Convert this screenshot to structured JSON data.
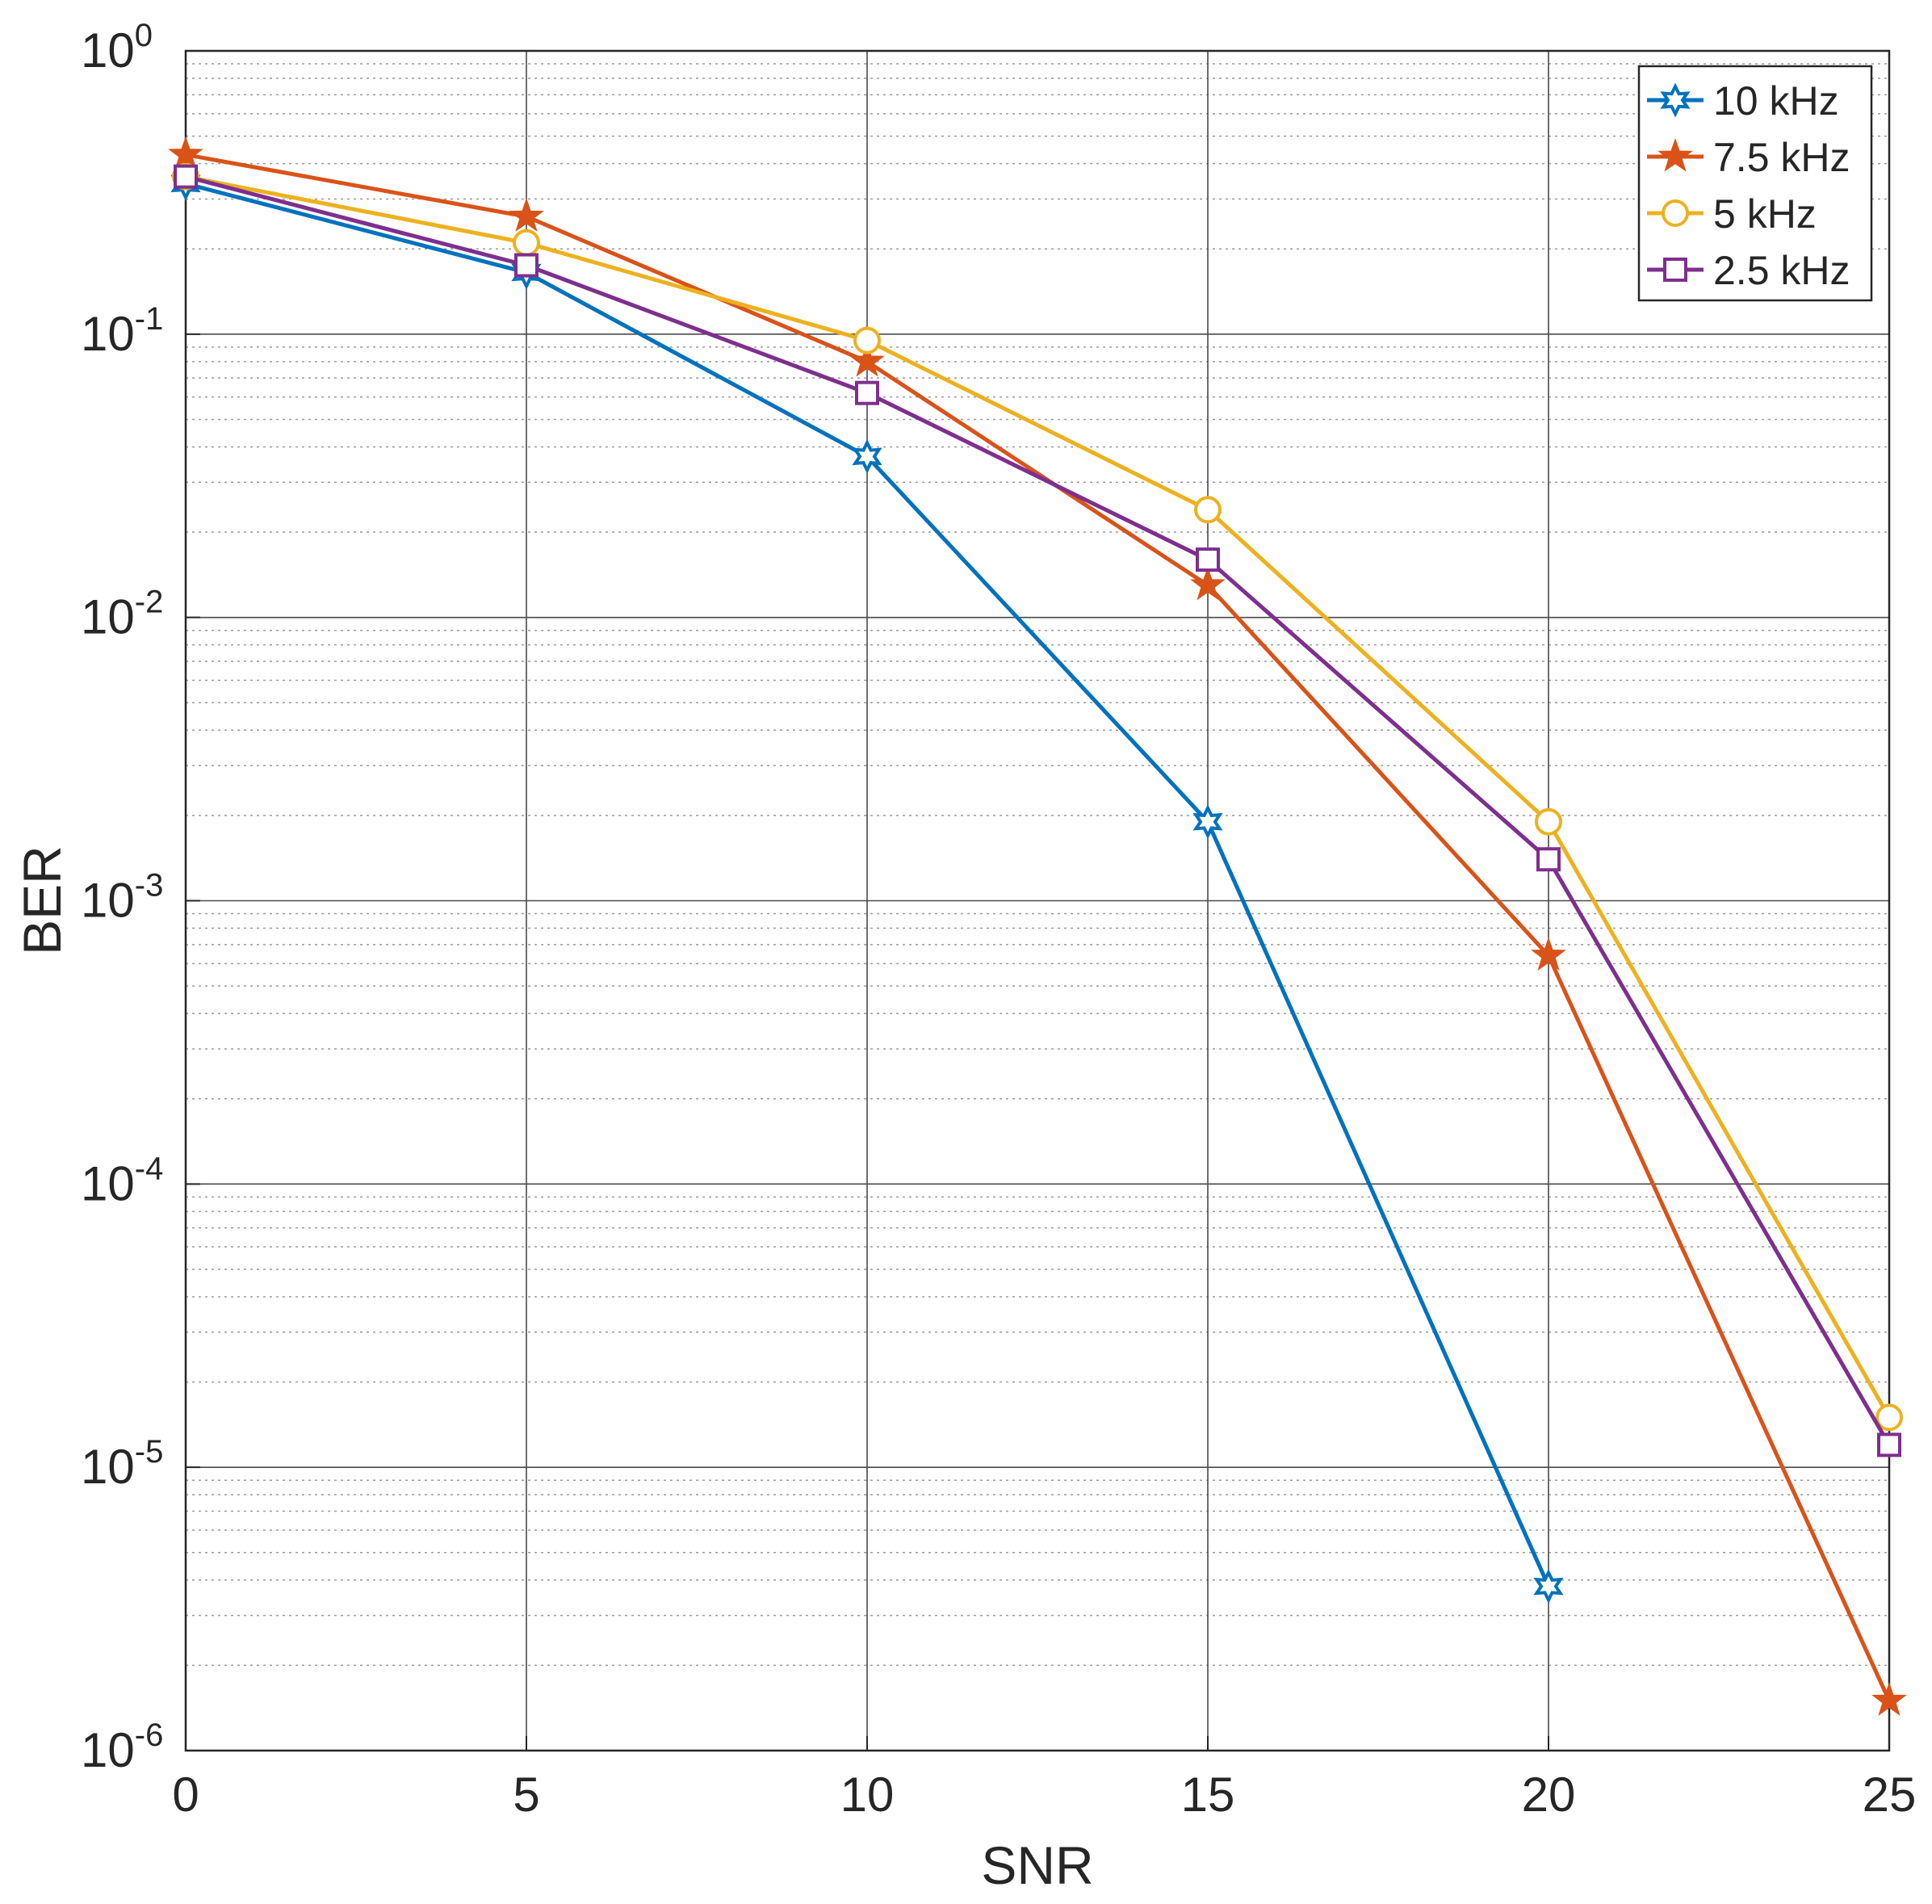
{
  "chart_data": {
    "type": "line",
    "xlabel": "SNR",
    "ylabel": "BER",
    "yscale": "log",
    "xlim": [
      0,
      25
    ],
    "ylim": [
      1e-06,
      1
    ],
    "grid": "major and minor",
    "legend_position": "top-right",
    "x": [
      0,
      5,
      10,
      15,
      20,
      25
    ],
    "x_ticks": [
      "0",
      "5",
      "10",
      "15",
      "20",
      "25"
    ],
    "y_ticks": [
      {
        "base": "10",
        "exp": "0",
        "value": 1
      },
      {
        "base": "10",
        "exp": "-1",
        "value": 0.1
      },
      {
        "base": "10",
        "exp": "-2",
        "value": 0.01
      },
      {
        "base": "10",
        "exp": "-3",
        "value": 0.001
      },
      {
        "base": "10",
        "exp": "-4",
        "value": 0.0001
      },
      {
        "base": "10",
        "exp": "-5",
        "value": 1e-05
      },
      {
        "base": "10",
        "exp": "-6",
        "value": 1e-06
      }
    ],
    "series": [
      {
        "name": "10 kHz",
        "color": "#0072BD",
        "marker": "hexagram",
        "values": [
          0.34,
          0.165,
          0.037,
          0.0019,
          3.8e-06,
          null
        ]
      },
      {
        "name": "7.5 kHz",
        "color": "#D95319",
        "marker": "pentagram",
        "values": [
          0.43,
          0.26,
          0.08,
          0.013,
          0.00064,
          1.5e-06
        ]
      },
      {
        "name": "5 kHz",
        "color": "#EDB120",
        "marker": "circle",
        "values": [
          0.36,
          0.21,
          0.095,
          0.024,
          0.0019,
          1.5e-05
        ]
      },
      {
        "name": "2.5 kHz",
        "color": "#7E2F8E",
        "marker": "square",
        "values": [
          0.36,
          0.175,
          0.062,
          0.016,
          0.0014,
          1.2e-05
        ]
      }
    ]
  }
}
